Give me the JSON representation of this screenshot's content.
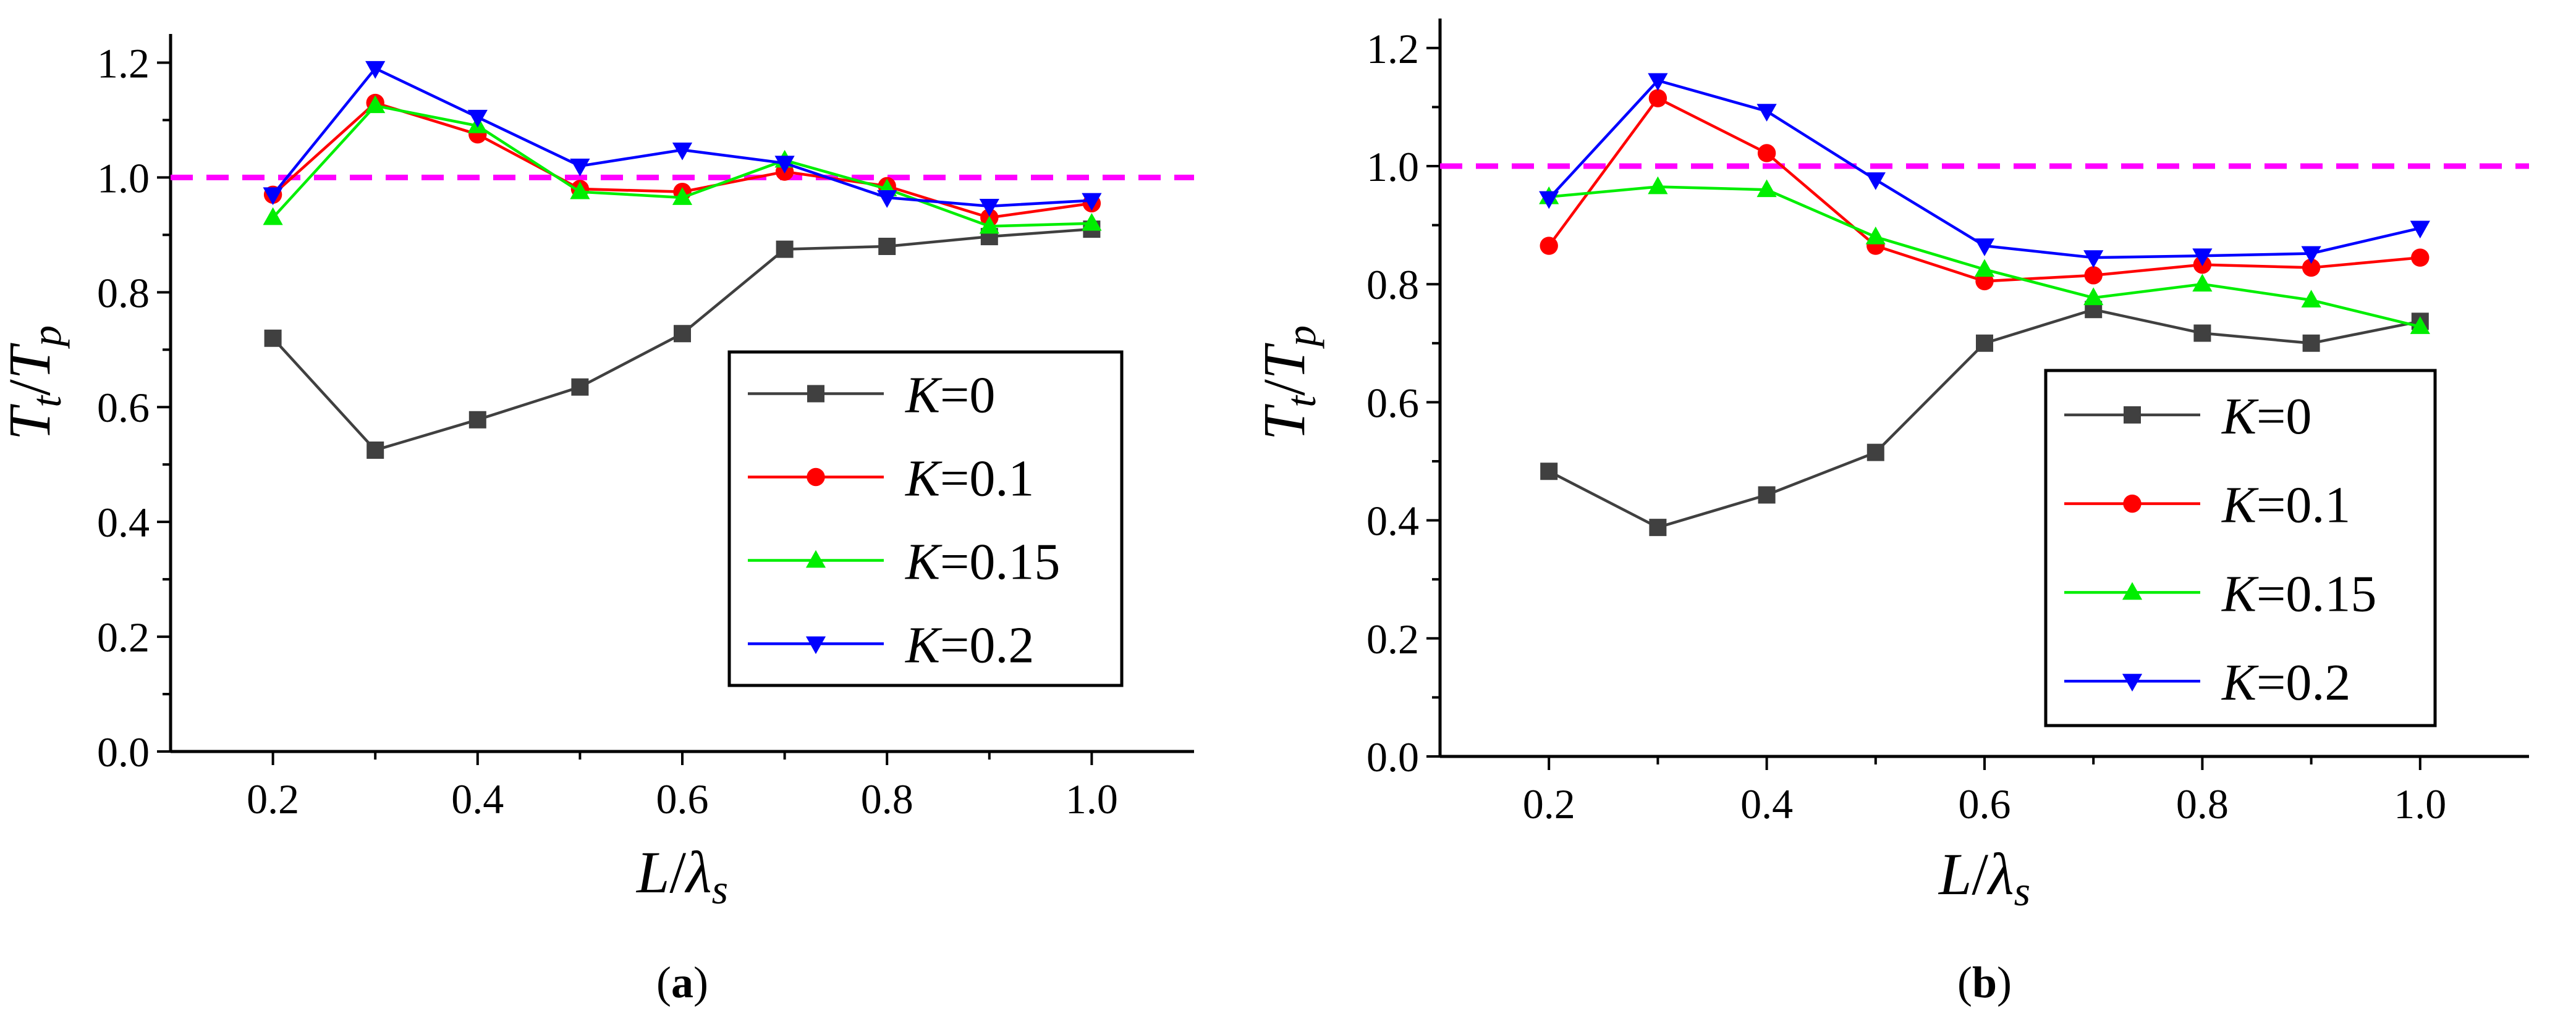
{
  "chart_data": [
    {
      "id": "a",
      "type": "line",
      "caption": "a",
      "xlabel": {
        "main": "L",
        "sep": "/",
        "var": "λ",
        "sub": "s"
      },
      "ylabel": {
        "num": "T",
        "num_sub": "t",
        "sep": "/",
        "den": "T",
        "den_sub": "p"
      },
      "x": [
        0.2,
        0.3,
        0.4,
        0.5,
        0.6,
        0.7,
        0.8,
        0.9,
        1.0
      ],
      "xlim": [
        0.1,
        1.1
      ],
      "ylim": [
        0.0,
        1.25
      ],
      "xticks": [
        "0.2",
        "0.4",
        "0.6",
        "0.8",
        "1.0"
      ],
      "yticks": [
        "0.0",
        "0.2",
        "0.4",
        "0.6",
        "0.8",
        "1.0",
        "1.2"
      ],
      "reference_line": {
        "y": 1.0,
        "color": "#ff00ff",
        "style": "dashed"
      },
      "legend_position": "bottom-right",
      "series": [
        {
          "name": "K=0",
          "k_var": "K",
          "k_val": "=0",
          "color": "#404040",
          "marker": "square",
          "values": [
            0.72,
            0.525,
            0.578,
            0.635,
            0.728,
            0.875,
            0.88,
            0.897,
            0.91
          ]
        },
        {
          "name": "K=0.1",
          "k_var": "K",
          "k_val": "=0.1",
          "color": "#ff0000",
          "marker": "circle",
          "values": [
            0.97,
            1.13,
            1.075,
            0.98,
            0.975,
            1.01,
            0.985,
            0.93,
            0.955
          ]
        },
        {
          "name": "K=0.15",
          "k_var": "K",
          "k_val": "=0.15",
          "color": "#00ee00",
          "marker": "triangle-up",
          "values": [
            0.93,
            1.125,
            1.09,
            0.975,
            0.965,
            1.03,
            0.98,
            0.915,
            0.92
          ]
        },
        {
          "name": "K=0.2",
          "k_var": "K",
          "k_val": "=0.2",
          "color": "#0000ff",
          "marker": "triangle-down",
          "values": [
            0.97,
            1.19,
            1.105,
            1.02,
            1.048,
            1.025,
            0.965,
            0.95,
            0.96
          ]
        }
      ]
    },
    {
      "id": "b",
      "type": "line",
      "caption": "b",
      "xlabel": {
        "main": "L",
        "sep": "/",
        "var": "λ",
        "sub": "s"
      },
      "ylabel": {
        "num": "T",
        "num_sub": "t",
        "sep": "/",
        "den": "T",
        "den_sub": "p"
      },
      "x": [
        0.2,
        0.3,
        0.4,
        0.5,
        0.6,
        0.7,
        0.8,
        0.9,
        1.0
      ],
      "xlim": [
        0.1,
        1.1
      ],
      "ylim": [
        0.0,
        1.25
      ],
      "xticks": [
        "0.2",
        "0.4",
        "0.6",
        "0.8",
        "1.0"
      ],
      "yticks": [
        "0.0",
        "0.2",
        "0.4",
        "0.6",
        "0.8",
        "1.0",
        "1.2"
      ],
      "reference_line": {
        "y": 1.0,
        "color": "#ff00ff",
        "style": "dashed"
      },
      "legend_position": "bottom-right",
      "series": [
        {
          "name": "K=0",
          "k_var": "K",
          "k_val": "=0",
          "color": "#404040",
          "marker": "square",
          "values": [
            0.483,
            0.388,
            0.443,
            0.515,
            0.7,
            0.757,
            0.717,
            0.7,
            0.737
          ]
        },
        {
          "name": "K=0.1",
          "k_var": "K",
          "k_val": "=0.1",
          "color": "#ff0000",
          "marker": "circle",
          "values": [
            0.865,
            1.115,
            1.022,
            0.865,
            0.805,
            0.815,
            0.833,
            0.828,
            0.845
          ]
        },
        {
          "name": "K=0.15",
          "k_var": "K",
          "k_val": "=0.15",
          "color": "#00ee00",
          "marker": "triangle-up",
          "values": [
            0.948,
            0.965,
            0.96,
            0.88,
            0.825,
            0.777,
            0.8,
            0.773,
            0.728
          ]
        },
        {
          "name": "K=0.2",
          "k_var": "K",
          "k_val": "=0.2",
          "color": "#0000ff",
          "marker": "triangle-down",
          "values": [
            0.945,
            1.145,
            1.093,
            0.977,
            0.865,
            0.845,
            0.848,
            0.852,
            0.895
          ]
        }
      ]
    }
  ]
}
